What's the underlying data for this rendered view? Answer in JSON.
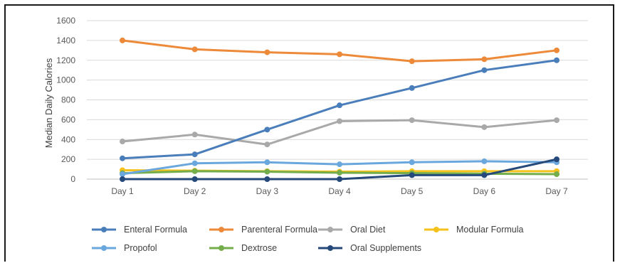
{
  "chart_data": {
    "type": "line",
    "title": "",
    "xlabel": "",
    "ylabel": "Median Daily Calories",
    "ylim": [
      0,
      1600
    ],
    "yticks": [
      "0",
      "200",
      "400",
      "600",
      "800",
      "1000",
      "1200",
      "1400",
      "1600"
    ],
    "categories": [
      "Day 1",
      "Day 2",
      "Day 3",
      "Day 4",
      "Day 5",
      "Day 6",
      "Day 7"
    ],
    "grid": true,
    "legend_position": "bottom",
    "series": [
      {
        "name": "Enteral Formula",
        "color": "#4a7ebb",
        "values": [
          210,
          250,
          500,
          745,
          920,
          1100,
          1200
        ]
      },
      {
        "name": "Parenteral Formula",
        "color": "#ed8a3a",
        "values": [
          1400,
          1310,
          1280,
          1260,
          1190,
          1210,
          1300
        ]
      },
      {
        "name": "Oral Diet",
        "color": "#a9a9a9",
        "values": [
          380,
          450,
          350,
          585,
          595,
          525,
          595
        ]
      },
      {
        "name": "Modular Formula",
        "color": "#f5c21b",
        "values": [
          90,
          85,
          80,
          75,
          80,
          80,
          80
        ]
      },
      {
        "name": "Propofol",
        "color": "#6aa7dd",
        "values": [
          50,
          160,
          170,
          150,
          170,
          180,
          170
        ]
      },
      {
        "name": "Dextrose",
        "color": "#74ad4b",
        "values": [
          60,
          80,
          75,
          65,
          60,
          55,
          50
        ]
      },
      {
        "name": "Oral Supplements",
        "color": "#24497a",
        "values": [
          0,
          0,
          0,
          0,
          40,
          40,
          200
        ]
      }
    ]
  }
}
